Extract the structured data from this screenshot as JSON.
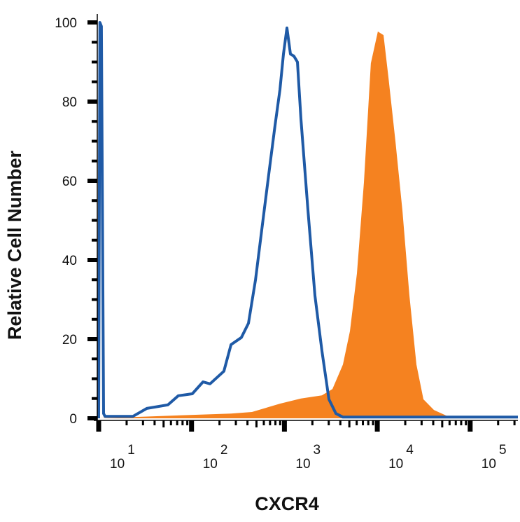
{
  "chart_data": {
    "type": "area",
    "title": "",
    "xlabel": "CXCR4",
    "ylabel": "Relative Cell Number",
    "xscale": "log",
    "xlim": [
      9.5,
      330000
    ],
    "ylim": [
      0,
      100
    ],
    "grid": false,
    "legend": "none",
    "x_ticks": [
      {
        "base": "10",
        "exp": "1",
        "value": 10
      },
      {
        "base": "10",
        "exp": "2",
        "value": 100
      },
      {
        "base": "10",
        "exp": "3",
        "value": 1000
      },
      {
        "base": "10",
        "exp": "4",
        "value": 10000
      },
      {
        "base": "10",
        "exp": "5",
        "value": 100000
      }
    ],
    "y_ticks": [
      {
        "label": "0",
        "value": 0
      },
      {
        "label": "20",
        "value": 20
      },
      {
        "label": "40",
        "value": 40
      },
      {
        "label": "60",
        "value": 60
      },
      {
        "label": "80",
        "value": 80
      },
      {
        "label": "100",
        "value": 100
      }
    ],
    "series": [
      {
        "style": "filled",
        "color": "#f58220",
        "points": [
          [
            10,
            0
          ],
          [
            266,
            1.2
          ],
          [
            447,
            1.6
          ],
          [
            895,
            3.7
          ],
          [
            1506,
            5
          ],
          [
            2535,
            5.8
          ],
          [
            3289,
            7.4
          ],
          [
            4266,
            13.6
          ],
          [
            5070,
            22
          ],
          [
            6040,
            36.6
          ],
          [
            7180,
            59.6
          ],
          [
            8530,
            89.7
          ],
          [
            10140,
            97.7
          ],
          [
            11660,
            96.8
          ],
          [
            13190,
            86
          ],
          [
            15670,
            70
          ],
          [
            18660,
            52.5
          ],
          [
            22180,
            31
          ],
          [
            26370,
            13.6
          ],
          [
            31400,
            4.8
          ],
          [
            40740,
            2.1
          ],
          [
            57540,
            0.5
          ],
          [
            81280,
            0
          ],
          [
            326600,
            0
          ]
        ]
      },
      {
        "style": "line",
        "color": "#1f5aa6",
        "points": [
          [
            10,
            0
          ],
          [
            10.3,
            100
          ],
          [
            10.7,
            99
          ],
          [
            11.3,
            1.2
          ],
          [
            11.7,
            0.5
          ],
          [
            23.4,
            0.5
          ],
          [
            33,
            2.5
          ],
          [
            55.7,
            3.4
          ],
          [
            72,
            5.7
          ],
          [
            102,
            6.2
          ],
          [
            133,
            9.2
          ],
          [
            158,
            8.7
          ],
          [
            223,
            11.9
          ],
          [
            266,
            18.6
          ],
          [
            344,
            20.4
          ],
          [
            410,
            24
          ],
          [
            488,
            35
          ],
          [
            580,
            49
          ],
          [
            690,
            63
          ],
          [
            793,
            74
          ],
          [
            895,
            83
          ],
          [
            976,
            92
          ],
          [
            1064,
            98.6
          ],
          [
            1161,
            92
          ],
          [
            1265,
            91.5
          ],
          [
            1380,
            90
          ],
          [
            1506,
            75.6
          ],
          [
            1791,
            52.6
          ],
          [
            2130,
            31
          ],
          [
            2535,
            17
          ],
          [
            3014,
            4.8
          ],
          [
            3589,
            1.2
          ],
          [
            4266,
            0.3
          ],
          [
            326600,
            0.3
          ]
        ]
      }
    ]
  }
}
